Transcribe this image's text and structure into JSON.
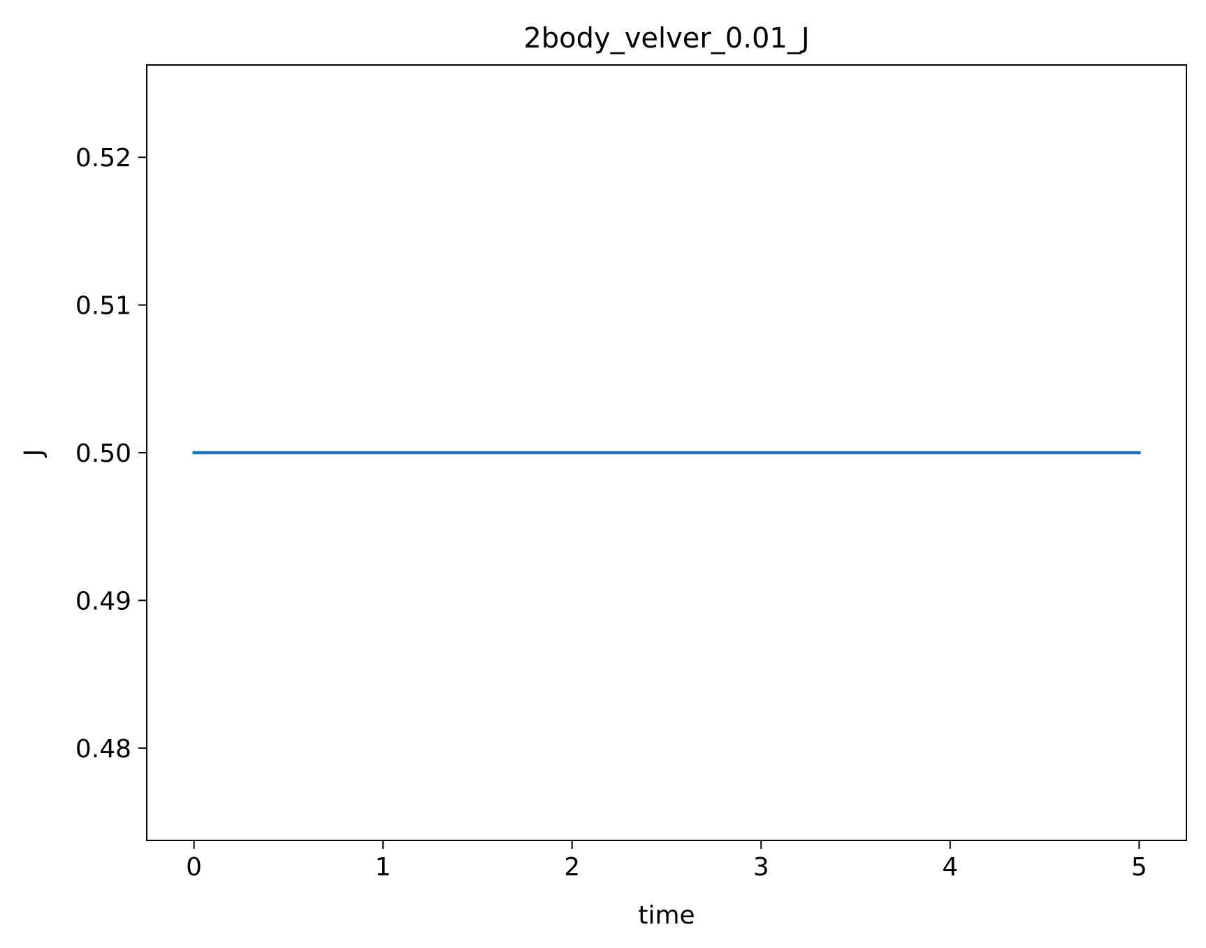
{
  "chart_data": {
    "type": "line",
    "title": "2body_velver_0.01_J",
    "xlabel": "time",
    "ylabel": "J",
    "xlim": [
      -0.25,
      5.25
    ],
    "ylim": [
      0.47375,
      0.52625
    ],
    "x_ticks": [
      0,
      1,
      2,
      3,
      4,
      5
    ],
    "x_tick_labels": [
      "0",
      "1",
      "2",
      "3",
      "4",
      "5"
    ],
    "y_ticks": [
      0.48,
      0.49,
      0.5,
      0.51,
      0.52
    ],
    "y_tick_labels": [
      "0.48",
      "0.49",
      "0.50",
      "0.51",
      "0.52"
    ],
    "grid": false,
    "series": [
      {
        "color": "#1f77b4",
        "x": [
          0,
          1,
          2,
          3,
          4,
          5
        ],
        "y": [
          0.5,
          0.5,
          0.5,
          0.5,
          0.5,
          0.5
        ]
      }
    ]
  }
}
